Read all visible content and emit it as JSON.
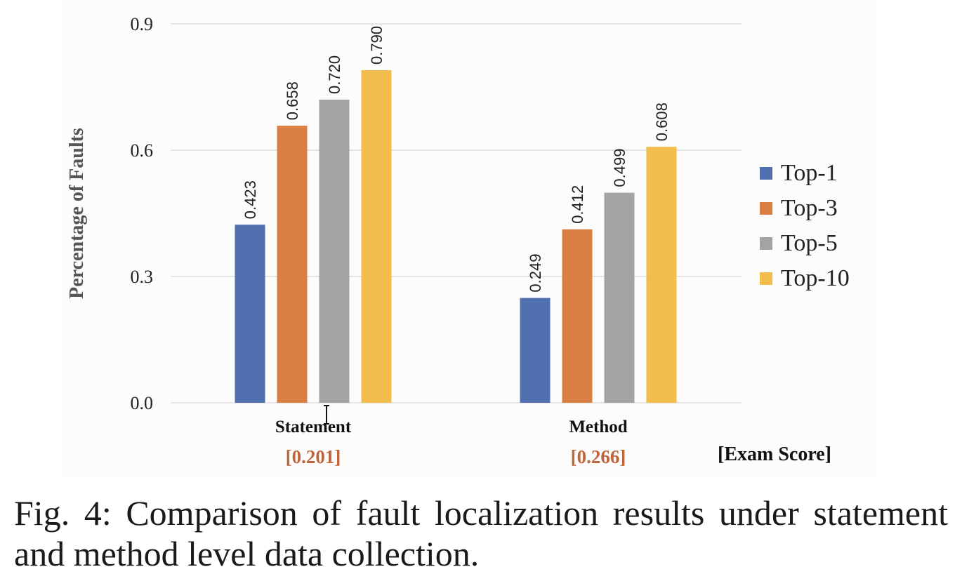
{
  "chart_data": {
    "type": "bar",
    "categories": [
      "Statement",
      "Method"
    ],
    "category_sublabels": [
      "[0.201]",
      "[0.266]"
    ],
    "extra_axis_label": "[Exam Score]",
    "ylabel": "Percentage of Faults",
    "xlabel": "",
    "ylim": [
      0,
      0.9
    ],
    "yticks": [
      "0.0",
      "0.3",
      "0.6",
      "0.9"
    ],
    "ytick_values": [
      0,
      0.3,
      0.6,
      0.9
    ],
    "grid": true,
    "legend_position": "right",
    "series": [
      {
        "name": "Top-1",
        "color": "#5070b0",
        "values": [
          0.423,
          0.249
        ],
        "labels": [
          "0.423",
          "0.249"
        ]
      },
      {
        "name": "Top-3",
        "color": "#dc7f44",
        "values": [
          0.658,
          0.412
        ],
        "labels": [
          "0.658",
          "0.412"
        ]
      },
      {
        "name": "Top-5",
        "color": "#a3a3a3",
        "values": [
          0.72,
          0.499
        ],
        "labels": [
          "0.720",
          "0.499"
        ]
      },
      {
        "name": "Top-10",
        "color": "#f2bd4c",
        "values": [
          0.79,
          0.608
        ],
        "labels": [
          "0.790",
          "0.608"
        ]
      }
    ],
    "sublabel_color": "#c0643a"
  },
  "caption": "Fig. 4: Comparison of fault localization results under statement and method level data collection.",
  "cursor": {
    "icon": "text-cursor-icon"
  }
}
